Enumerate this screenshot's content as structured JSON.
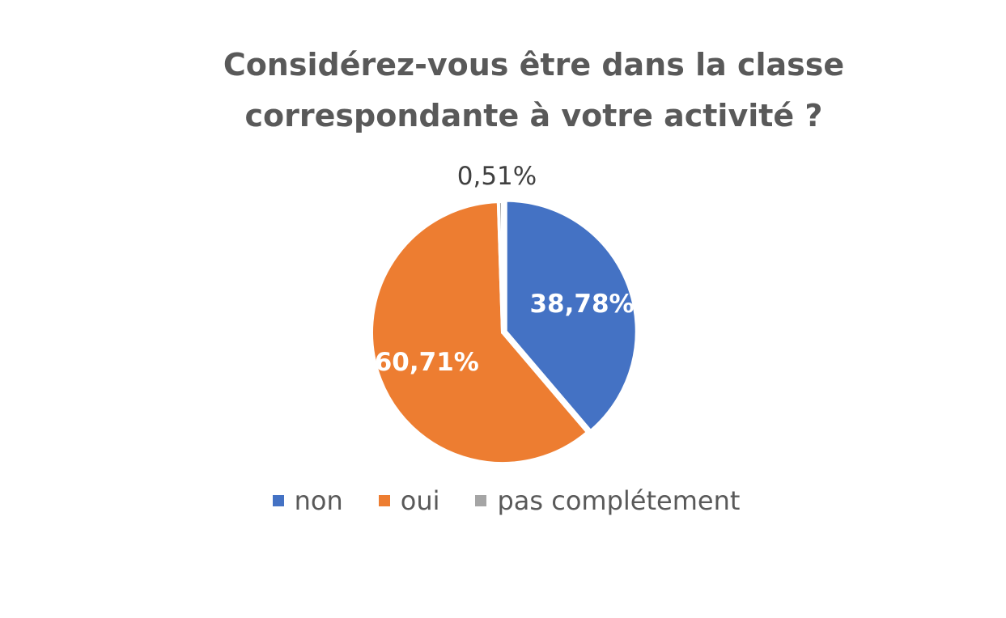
{
  "chart_data": {
    "type": "pie",
    "title": "Considérez-vous être dans la classe correspondante à votre activité ?",
    "title_lines": [
      "Considérez-vous être dans la classe",
      "correspondante à votre activité ?"
    ],
    "slices": [
      {
        "label": "non",
        "value": 38.78,
        "display": "38,78%",
        "color": "#4472C4",
        "label_color": "#FFFFFF",
        "label_inside": true
      },
      {
        "label": "oui",
        "value": 60.71,
        "display": "60,71%",
        "color": "#ED7D31",
        "label_color": "#FFFFFF",
        "label_inside": true
      },
      {
        "label": "pas complétement",
        "value": 0.51,
        "display": "0,51%",
        "color": "#A5A5A5",
        "label_color": "#404040",
        "label_inside": false
      }
    ],
    "legend": {
      "placement": "bottom",
      "entries": [
        {
          "label": "non",
          "color": "#4472C4"
        },
        {
          "label": "oui",
          "color": "#ED7D31"
        },
        {
          "label": "pas complétement",
          "color": "#A5A5A5"
        }
      ]
    }
  }
}
